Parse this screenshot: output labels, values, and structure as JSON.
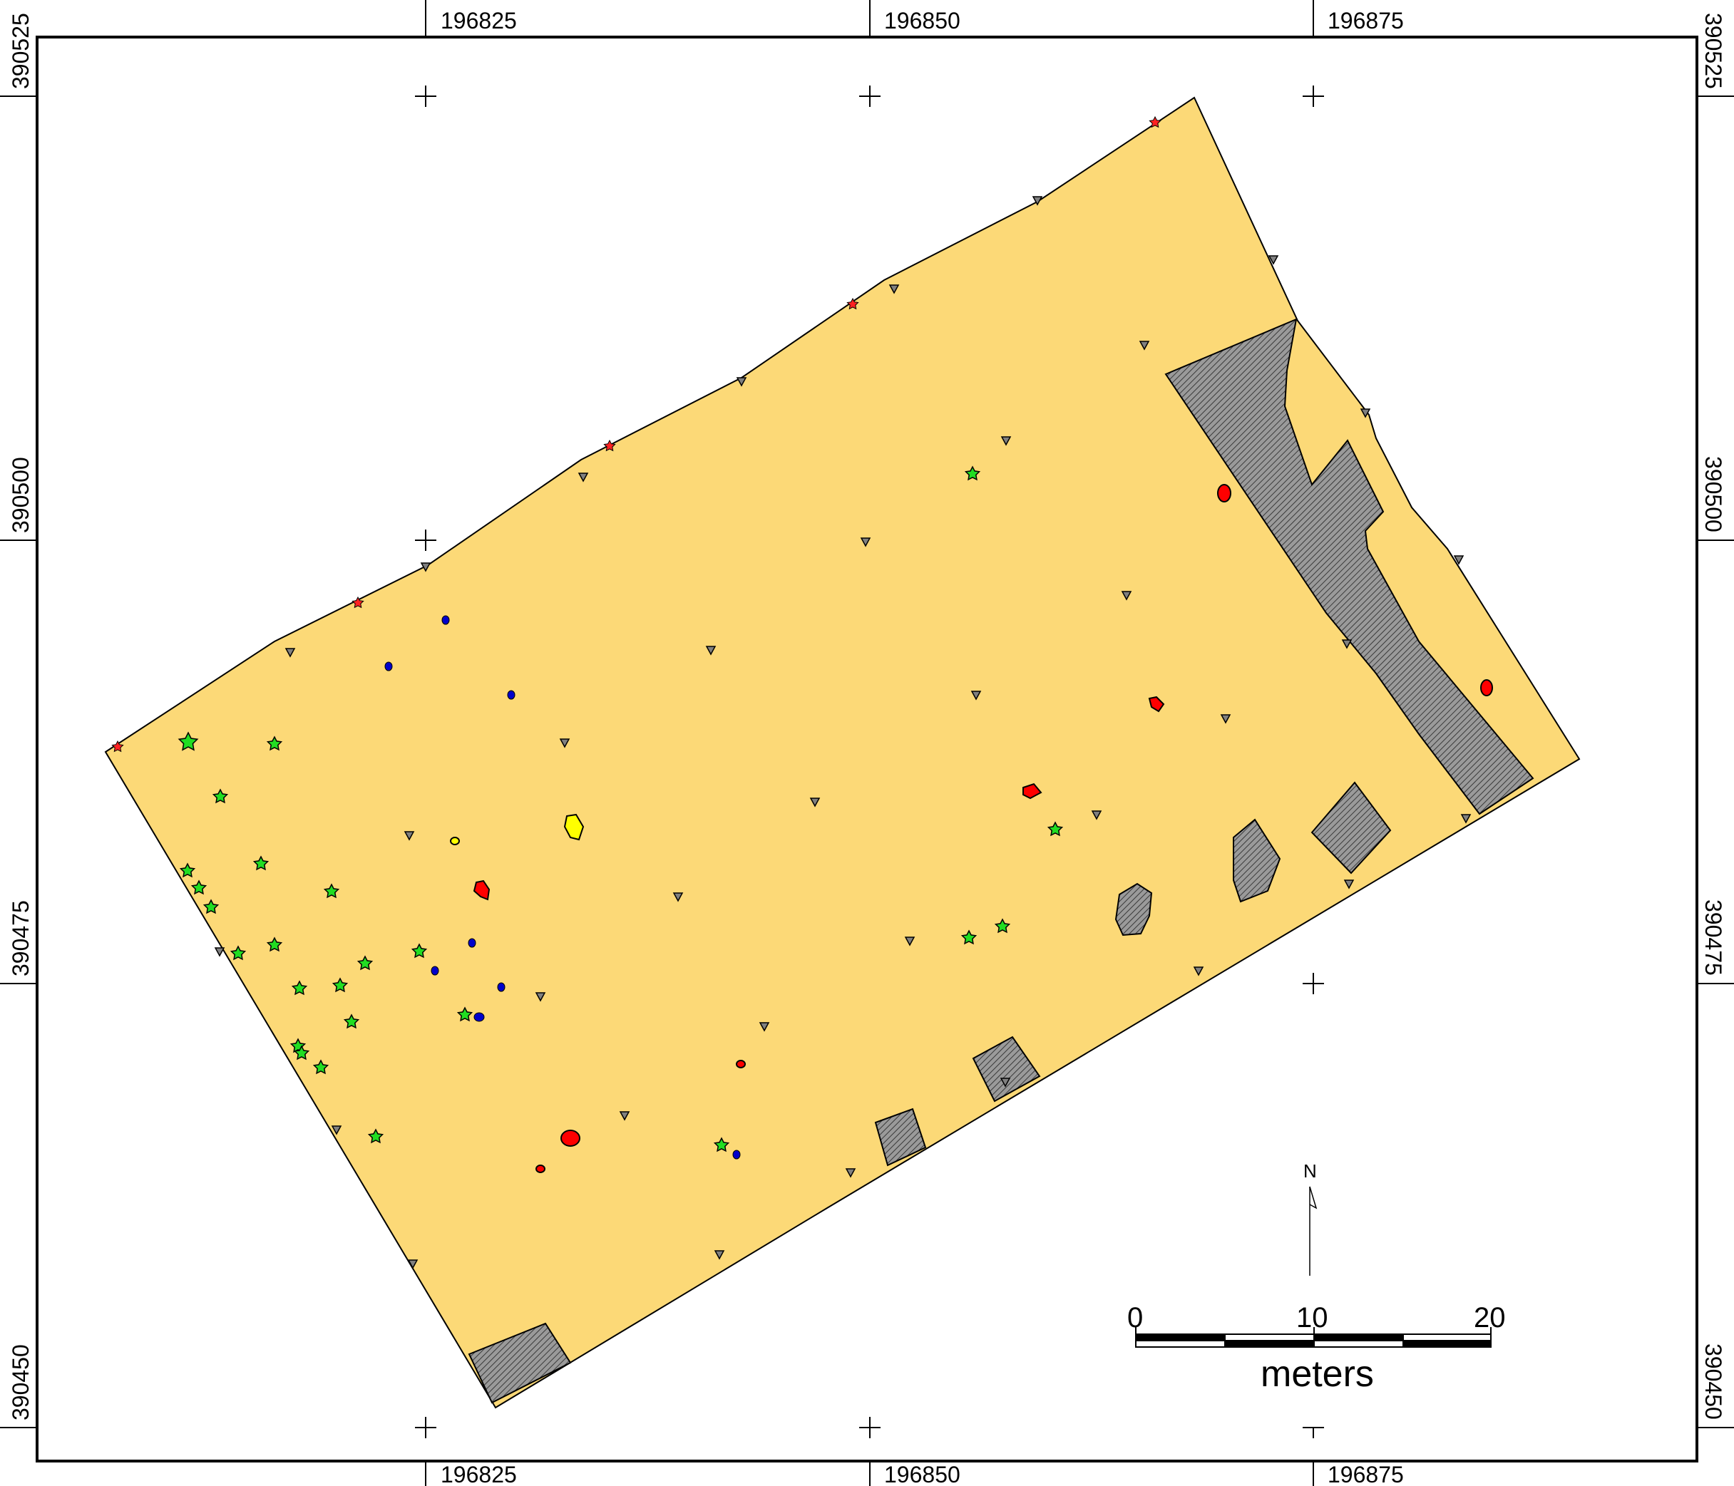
{
  "coordinates": {
    "easting": [
      "196825",
      "196850",
      "196875"
    ],
    "northing": [
      "390525",
      "390500",
      "390475",
      "390450"
    ]
  },
  "scale_bar": {
    "ticks": [
      "0",
      "10",
      "20"
    ],
    "unit": "meters"
  },
  "north_label": "N",
  "colors": {
    "site_fill": "#fcd977",
    "disturbed_fill": "#9a9a9a",
    "red_feature": "#ff0000",
    "yellow_feature": "#ffff00",
    "green_star": "#22dd22",
    "red_star": "#ff2222",
    "blue_dot": "#0000cc",
    "triangle": "#808080"
  }
}
